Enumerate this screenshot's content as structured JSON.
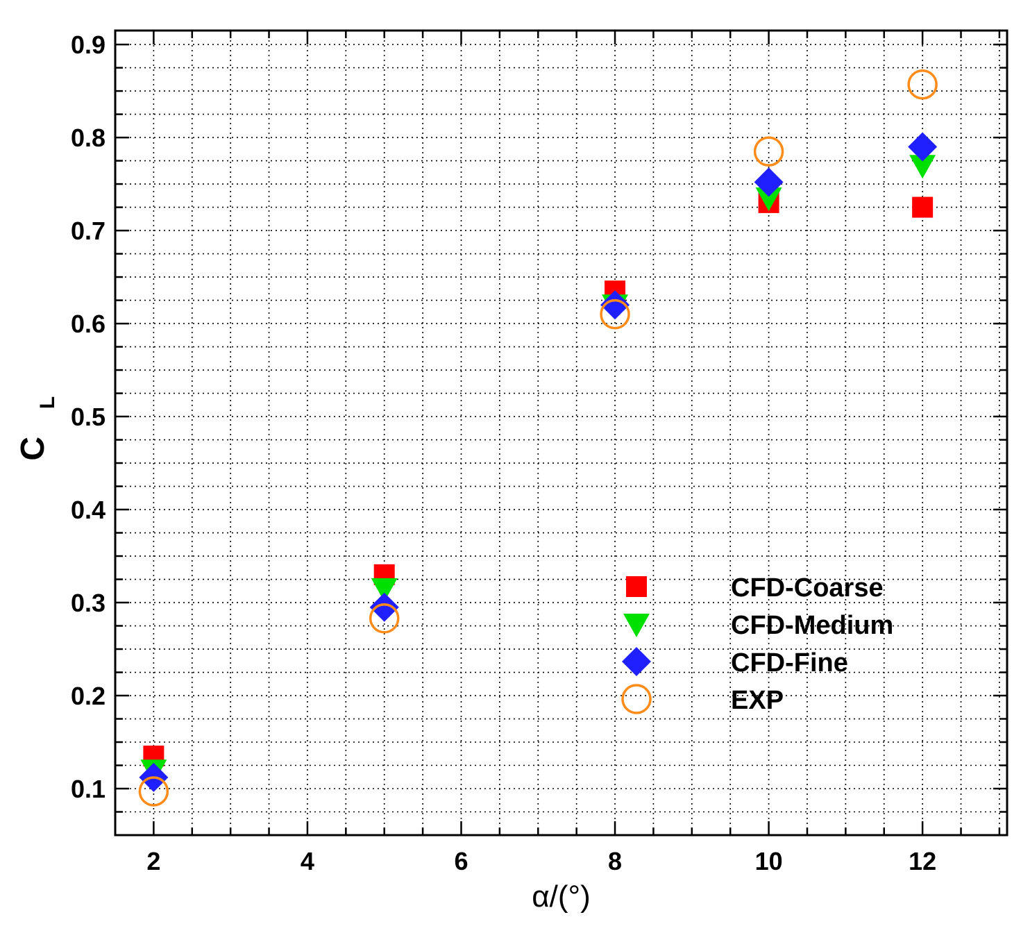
{
  "chart_data": {
    "type": "scatter",
    "title": "",
    "xlabel": "α/(°)",
    "ylabel_main": "C",
    "ylabel_sub": "L",
    "xlim": [
      1.5,
      13.1
    ],
    "ylim": [
      0.05,
      0.915
    ],
    "xticks": [
      2,
      4,
      6,
      8,
      10,
      12
    ],
    "xtick_labels": [
      "2",
      "4",
      "6",
      "8",
      "10",
      "12"
    ],
    "yticks": [
      0.1,
      0.2,
      0.3,
      0.4,
      0.5,
      0.6,
      0.7,
      0.8,
      0.9
    ],
    "ytick_labels": [
      "0.1",
      "0.2",
      "0.3",
      "0.4",
      "0.5",
      "0.6",
      "0.7",
      "0.8",
      "0.9"
    ],
    "grid": true,
    "legend_position": "bottom-right",
    "series": [
      {
        "name": "CFD-Coarse",
        "marker": "square",
        "color": "#ff0000",
        "x": [
          2,
          5,
          8,
          10,
          12
        ],
        "y": [
          0.135,
          0.33,
          0.635,
          0.73,
          0.725
        ]
      },
      {
        "name": "CFD-Medium",
        "marker": "triangle-down",
        "color": "#00e000",
        "x": [
          2,
          5,
          8,
          10,
          12
        ],
        "y": [
          0.12,
          0.315,
          0.62,
          0.735,
          0.77
        ]
      },
      {
        "name": "CFD-Fine",
        "marker": "diamond",
        "color": "#2020ff",
        "x": [
          2,
          5,
          8,
          10,
          12
        ],
        "y": [
          0.112,
          0.295,
          0.62,
          0.752,
          0.79
        ]
      },
      {
        "name": "EXP",
        "marker": "circle-open",
        "color": "#ff8c1a",
        "x": [
          2,
          5,
          8,
          10,
          12
        ],
        "y": [
          0.097,
          0.283,
          0.61,
          0.785,
          0.857
        ]
      }
    ]
  }
}
